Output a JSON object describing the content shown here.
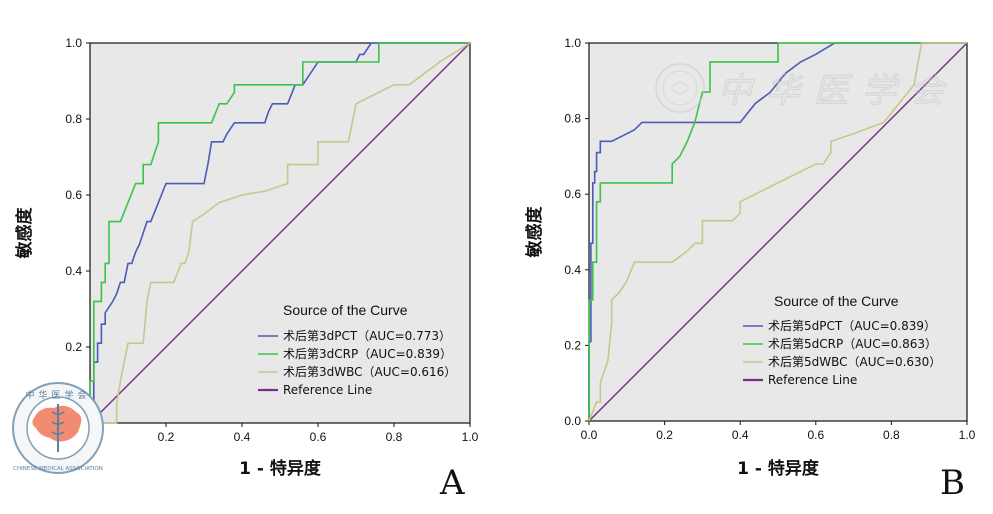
{
  "chart_data": [
    {
      "type": "line",
      "panel_letter": "A",
      "xlabel": "1 - 特异度",
      "ylabel": "敏感度",
      "xlim": [
        0,
        1
      ],
      "ylim": [
        0,
        1
      ],
      "xticks": [
        "0.0",
        "0.2",
        "0.4",
        "0.6",
        "0.8",
        "1.0"
      ],
      "yticks": [
        "0.0",
        "0.2",
        "0.4",
        "0.6",
        "0.8",
        "1.0"
      ],
      "grid": false,
      "legend": {
        "title": "Source of the Curve",
        "placement": "lower-right"
      },
      "series": [
        {
          "name": "术后第3dPCT（AUC=0.773）",
          "color": "#4a5bb8",
          "x": [
            0,
            0,
            0.01,
            0.01,
            0.02,
            0.02,
            0.03,
            0.03,
            0.04,
            0.04,
            0.06,
            0.07,
            0.08,
            0.09,
            0.1,
            0.11,
            0.12,
            0.13,
            0.14,
            0.15,
            0.16,
            0.18,
            0.2,
            0.22,
            0.24,
            0.26,
            0.3,
            0.31,
            0.32,
            0.35,
            0.36,
            0.38,
            0.4,
            0.42,
            0.46,
            0.47,
            0.48,
            0.52,
            0.54,
            0.56,
            0.58,
            0.6,
            0.64,
            0.7,
            0.71,
            0.72,
            0.74,
            1.0
          ],
          "y": [
            0,
            0.05,
            0.05,
            0.16,
            0.16,
            0.21,
            0.21,
            0.26,
            0.26,
            0.29,
            0.32,
            0.34,
            0.37,
            0.37,
            0.42,
            0.42,
            0.45,
            0.47,
            0.5,
            0.53,
            0.53,
            0.58,
            0.63,
            0.63,
            0.63,
            0.63,
            0.63,
            0.68,
            0.74,
            0.74,
            0.76,
            0.79,
            0.79,
            0.79,
            0.79,
            0.82,
            0.84,
            0.84,
            0.89,
            0.89,
            0.92,
            0.95,
            0.95,
            0.95,
            0.97,
            0.97,
            1.0,
            1.0
          ]
        },
        {
          "name": "术后第3dCRP（AUC=0.839）",
          "color": "#3cc24a",
          "x": [
            0,
            0,
            0.01,
            0.01,
            0.03,
            0.03,
            0.04,
            0.04,
            0.05,
            0.05,
            0.07,
            0.07,
            0.08,
            0.1,
            0.1,
            0.12,
            0.14,
            0.14,
            0.16,
            0.18,
            0.18,
            0.32,
            0.34,
            0.36,
            0.38,
            0.38,
            0.5,
            0.54,
            0.56,
            0.56,
            0.61,
            0.61,
            0.76,
            0.76,
            1.0
          ],
          "y": [
            0,
            0.11,
            0.11,
            0.32,
            0.32,
            0.37,
            0.37,
            0.42,
            0.42,
            0.53,
            0.53,
            0.53,
            0.53,
            0.58,
            0.58,
            0.63,
            0.63,
            0.68,
            0.68,
            0.74,
            0.79,
            0.79,
            0.84,
            0.84,
            0.87,
            0.89,
            0.89,
            0.89,
            0.89,
            0.95,
            0.95,
            0.95,
            0.95,
            1.0,
            1.0
          ]
        },
        {
          "name": "术后第3dWBC（AUC=0.616）",
          "color": "#c4c98a",
          "x": [
            0,
            0.07,
            0.07,
            0.08,
            0.09,
            0.1,
            0.1,
            0.14,
            0.15,
            0.16,
            0.22,
            0.24,
            0.25,
            0.26,
            0.27,
            0.3,
            0.34,
            0.4,
            0.46,
            0.52,
            0.52,
            0.6,
            0.6,
            0.68,
            0.69,
            0.7,
            0.8,
            0.84,
            0.88,
            0.92,
            1.0
          ],
          "y": [
            0,
            0,
            0.05,
            0.11,
            0.16,
            0.21,
            0.21,
            0.21,
            0.32,
            0.37,
            0.37,
            0.42,
            0.42,
            0.45,
            0.53,
            0.55,
            0.58,
            0.6,
            0.61,
            0.63,
            0.68,
            0.68,
            0.74,
            0.74,
            0.79,
            0.84,
            0.89,
            0.89,
            0.92,
            0.95,
            1.0
          ]
        },
        {
          "name": "Reference Line",
          "color": "#7a2a8a",
          "x": [
            0,
            1
          ],
          "y": [
            0,
            1
          ]
        }
      ]
    },
    {
      "type": "line",
      "panel_letter": "B",
      "xlabel": "1 - 特异度",
      "ylabel": "敏感度",
      "xlim": [
        0,
        1
      ],
      "ylim": [
        0,
        1
      ],
      "xticks": [
        "0.0",
        "0.2",
        "0.4",
        "0.6",
        "0.8",
        "1.0"
      ],
      "yticks": [
        "0.0",
        "0.2",
        "0.4",
        "0.6",
        "0.8",
        "1.0"
      ],
      "grid": false,
      "legend": {
        "title": "Source of the Curve",
        "placement": "lower-right"
      },
      "series": [
        {
          "name": "术后第5dPCT（AUC=0.839）",
          "color": "#4a5bb8",
          "x": [
            0,
            0,
            0.005,
            0.005,
            0.01,
            0.01,
            0.015,
            0.015,
            0.02,
            0.02,
            0.03,
            0.03,
            0.06,
            0.1,
            0.12,
            0.14,
            0.17,
            0.22,
            0.3,
            0.4,
            0.44,
            0.48,
            0.52,
            0.56,
            0.6,
            0.65,
            1.0
          ],
          "y": [
            0,
            0.21,
            0.21,
            0.47,
            0.47,
            0.63,
            0.63,
            0.66,
            0.66,
            0.71,
            0.71,
            0.74,
            0.74,
            0.76,
            0.77,
            0.79,
            0.79,
            0.79,
            0.79,
            0.79,
            0.84,
            0.87,
            0.92,
            0.95,
            0.97,
            1.0,
            1.0
          ]
        },
        {
          "name": "术后第5dCRP（AUC=0.863）",
          "color": "#3cc24a",
          "x": [
            0,
            0,
            0.01,
            0.01,
            0.02,
            0.02,
            0.03,
            0.03,
            0.04,
            0.04,
            0.22,
            0.22,
            0.24,
            0.26,
            0.28,
            0.3,
            0.32,
            0.32,
            0.5,
            0.5,
            1.0
          ],
          "y": [
            0,
            0.32,
            0.32,
            0.42,
            0.42,
            0.58,
            0.58,
            0.63,
            0.63,
            0.63,
            0.63,
            0.68,
            0.7,
            0.74,
            0.79,
            0.87,
            0.87,
            0.95,
            0.95,
            1.0,
            1.0
          ]
        },
        {
          "name": "术后第5dWBC（AUC=0.630）",
          "color": "#c4c98a",
          "x": [
            0,
            0.02,
            0.03,
            0.03,
            0.05,
            0.06,
            0.06,
            0.08,
            0.1,
            0.12,
            0.14,
            0.18,
            0.22,
            0.26,
            0.28,
            0.3,
            0.3,
            0.34,
            0.38,
            0.4,
            0.4,
            0.5,
            0.6,
            0.62,
            0.64,
            0.64,
            0.7,
            0.78,
            0.82,
            0.86,
            0.88,
            1.0
          ],
          "y": [
            0,
            0.05,
            0.05,
            0.1,
            0.16,
            0.26,
            0.32,
            0.34,
            0.37,
            0.42,
            0.42,
            0.42,
            0.42,
            0.45,
            0.47,
            0.47,
            0.53,
            0.53,
            0.53,
            0.55,
            0.58,
            0.63,
            0.68,
            0.68,
            0.71,
            0.74,
            0.76,
            0.79,
            0.84,
            0.89,
            1.0,
            1.0
          ]
        },
        {
          "name": "Reference Line",
          "color": "#7a2a8a",
          "x": [
            0,
            1
          ],
          "y": [
            0,
            1
          ]
        }
      ]
    }
  ],
  "watermark": {
    "text": "中华医学会",
    "seal_text": "CHINESE MEDICAL ASSOCIATION"
  },
  "colors": {
    "plot_background": "#e8e8e8",
    "frame": "#111111"
  }
}
